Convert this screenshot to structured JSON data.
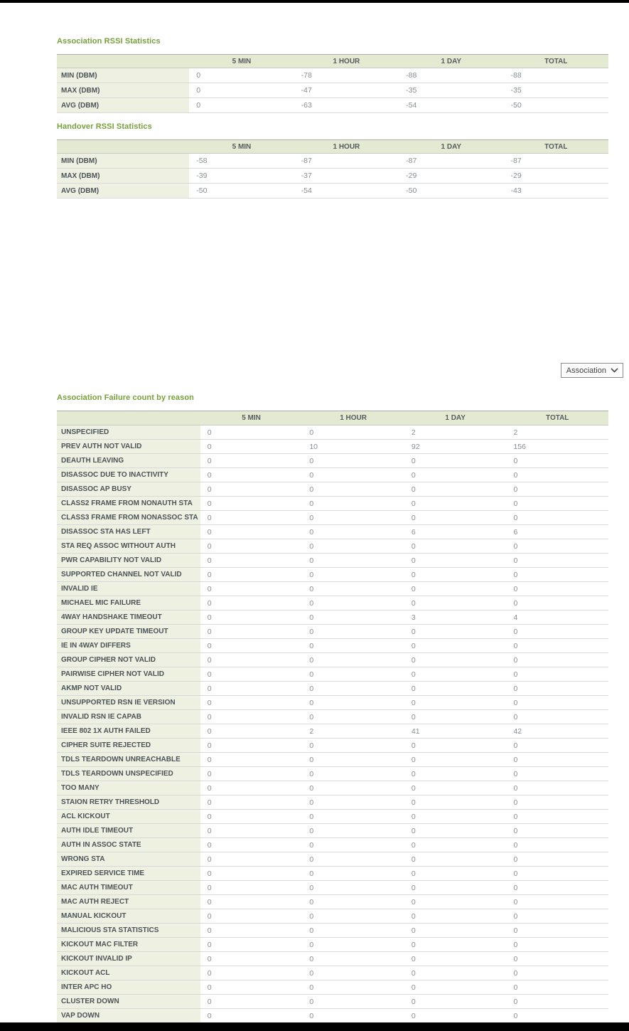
{
  "colors": {
    "title-green": "#76a13b",
    "header-bg": "#e4ead2",
    "label-bg": "#eef1e1",
    "header-text": "#575c60",
    "label-text": "#4b5359",
    "value-text": "#878f93"
  },
  "filter": {
    "selected": "Association"
  },
  "rssi_tables": [
    {
      "title": "Association RSSI Statistics",
      "columns": [
        "5 MIN",
        "1 HOUR",
        "1 DAY",
        "TOTAL"
      ],
      "rows": [
        {
          "label": "MIN (DBM)",
          "values": [
            "0",
            "-78",
            "-88",
            "-88"
          ]
        },
        {
          "label": "MAX (DBM)",
          "values": [
            "0",
            "-47",
            "-35",
            "-35"
          ]
        },
        {
          "label": "AVG (DBM)",
          "values": [
            "0",
            "-63",
            "-54",
            "-50"
          ]
        }
      ]
    },
    {
      "title": "Handover RSSI Statistics",
      "columns": [
        "5 MIN",
        "1 HOUR",
        "1 DAY",
        "TOTAL"
      ],
      "rows": [
        {
          "label": "MIN (DBM)",
          "values": [
            "-58",
            "-87",
            "-87",
            "-87"
          ]
        },
        {
          "label": "MAX (DBM)",
          "values": [
            "-39",
            "-37",
            "-29",
            "-29"
          ]
        },
        {
          "label": "AVG (DBM)",
          "values": [
            "-50",
            "-54",
            "-50",
            "-43"
          ]
        }
      ]
    }
  ],
  "failure_table": {
    "title": "Association Failure count by reason",
    "columns": [
      "5 MIN",
      "1 HOUR",
      "1 DAY",
      "TOTAL"
    ],
    "rows": [
      {
        "label": "UNSPECIFIED",
        "values": [
          "0",
          "0",
          "2",
          "2"
        ]
      },
      {
        "label": "PREV AUTH NOT VALID",
        "values": [
          "0",
          "10",
          "92",
          "156"
        ]
      },
      {
        "label": "DEAUTH LEAVING",
        "values": [
          "0",
          "0",
          "0",
          "0"
        ]
      },
      {
        "label": "DISASSOC DUE TO INACTIVITY",
        "values": [
          "0",
          "0",
          "0",
          "0"
        ]
      },
      {
        "label": "DISASSOC AP BUSY",
        "values": [
          "0",
          "0",
          "0",
          "0"
        ]
      },
      {
        "label": "CLASS2 FRAME FROM NONAUTH STA",
        "values": [
          "0",
          "0",
          "0",
          "0"
        ]
      },
      {
        "label": "CLASS3 FRAME FROM NONASSOC STA",
        "values": [
          "0",
          "0",
          "0",
          "0"
        ]
      },
      {
        "label": "DISASSOC STA HAS LEFT",
        "values": [
          "0",
          "0",
          "6",
          "6"
        ]
      },
      {
        "label": "STA REQ ASSOC WITHOUT AUTH",
        "values": [
          "0",
          "0",
          "0",
          "0"
        ]
      },
      {
        "label": "PWR CAPABILITY NOT VALID",
        "values": [
          "0",
          "0",
          "0",
          "0"
        ]
      },
      {
        "label": "SUPPORTED CHANNEL NOT VALID",
        "values": [
          "0",
          "0",
          "0",
          "0"
        ]
      },
      {
        "label": "INVALID IE",
        "values": [
          "0",
          "0",
          "0",
          "0"
        ]
      },
      {
        "label": "MICHAEL MIC FAILURE",
        "values": [
          "0",
          "0",
          "0",
          "0"
        ]
      },
      {
        "label": "4WAY HANDSHAKE TIMEOUT",
        "values": [
          "0",
          "0",
          "3",
          "4"
        ]
      },
      {
        "label": "GROUP KEY UPDATE TIMEOUT",
        "values": [
          "0",
          "0",
          "0",
          "0"
        ]
      },
      {
        "label": "IE IN 4WAY DIFFERS",
        "values": [
          "0",
          "0",
          "0",
          "0"
        ]
      },
      {
        "label": "GROUP CIPHER NOT VALID",
        "values": [
          "0",
          "0",
          "0",
          "0"
        ]
      },
      {
        "label": "PAIRWISE CIPHER NOT VALID",
        "values": [
          "0",
          "0",
          "0",
          "0"
        ]
      },
      {
        "label": "AKMP NOT VALID",
        "values": [
          "0",
          "0",
          "0",
          "0"
        ]
      },
      {
        "label": "UNSUPPORTED RSN IE VERSION",
        "values": [
          "0",
          "0",
          "0",
          "0"
        ]
      },
      {
        "label": "INVALID RSN IE CAPAB",
        "values": [
          "0",
          "0",
          "0",
          "0"
        ]
      },
      {
        "label": "IEEE 802 1X AUTH FAILED",
        "values": [
          "0",
          "2",
          "41",
          "42"
        ]
      },
      {
        "label": "CIPHER SUITE REJECTED",
        "values": [
          "0",
          "0",
          "0",
          "0"
        ]
      },
      {
        "label": "TDLS TEARDOWN UNREACHABLE",
        "values": [
          "0",
          "0",
          "0",
          "0"
        ]
      },
      {
        "label": "TDLS TEARDOWN UNSPECIFIED",
        "values": [
          "0",
          "0",
          "0",
          "0"
        ]
      },
      {
        "label": "TOO MANY",
        "values": [
          "0",
          "0",
          "0",
          "0"
        ]
      },
      {
        "label": "STAION RETRY THRESHOLD",
        "values": [
          "0",
          "0",
          "0",
          "0"
        ]
      },
      {
        "label": "ACL KICKOUT",
        "values": [
          "0",
          "0",
          "0",
          "0"
        ]
      },
      {
        "label": "AUTH IDLE TIMEOUT",
        "values": [
          "0",
          "0",
          "0",
          "0"
        ]
      },
      {
        "label": "AUTH IN ASSOC STATE",
        "values": [
          "0",
          "0",
          "0",
          "0"
        ]
      },
      {
        "label": "WRONG STA",
        "values": [
          "0",
          "0",
          "0",
          "0"
        ]
      },
      {
        "label": "EXPIRED SERVICE TIME",
        "values": [
          "0",
          "0",
          "0",
          "0"
        ]
      },
      {
        "label": "MAC AUTH TIMEOUT",
        "values": [
          "0",
          "0",
          "0",
          "0"
        ]
      },
      {
        "label": "MAC AUTH REJECT",
        "values": [
          "0",
          "0",
          "0",
          "0"
        ]
      },
      {
        "label": "MANUAL KICKOUT",
        "values": [
          "0",
          "0",
          "0",
          "0"
        ]
      },
      {
        "label": "MALICIOUS STA STATISTICS",
        "values": [
          "0",
          "0",
          "0",
          "0"
        ]
      },
      {
        "label": "KICKOUT MAC FILTER",
        "values": [
          "0",
          "0",
          "0",
          "0"
        ]
      },
      {
        "label": "KICKOUT INVALID IP",
        "values": [
          "0",
          "0",
          "0",
          "0"
        ]
      },
      {
        "label": "KICKOUT ACL",
        "values": [
          "0",
          "0",
          "0",
          "0"
        ]
      },
      {
        "label": "INTER APC HO",
        "values": [
          "0",
          "0",
          "0",
          "0"
        ]
      },
      {
        "label": "CLUSTER DOWN",
        "values": [
          "0",
          "0",
          "0",
          "0"
        ]
      },
      {
        "label": "VAP DOWN",
        "values": [
          "0",
          "0",
          "0",
          "0"
        ]
      }
    ]
  }
}
